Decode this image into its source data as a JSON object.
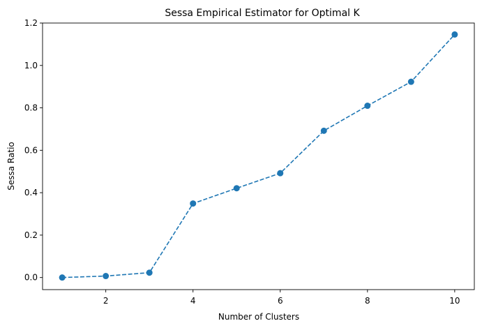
{
  "chart_data": {
    "type": "line",
    "title": "Sessa Empirical Estimator for Optimal K",
    "xlabel": "Number of Clusters",
    "ylabel": "Sessa Ratio",
    "x": [
      1,
      2,
      3,
      4,
      5,
      6,
      7,
      8,
      9,
      10
    ],
    "series": [
      {
        "values": [
          0.0,
          0.007,
          0.023,
          0.349,
          0.421,
          0.492,
          0.692,
          0.81,
          0.923,
          1.146
        ]
      }
    ],
    "xlim": [
      0.55,
      10.45
    ],
    "ylim": [
      -0.057,
      1.2
    ],
    "xticks": [
      2,
      4,
      6,
      8,
      10
    ],
    "xtick_labels": [
      "2",
      "4",
      "6",
      "8",
      "10"
    ],
    "yticks": [
      0.0,
      0.2,
      0.4,
      0.6,
      0.8,
      1.0,
      1.2
    ],
    "ytick_labels": [
      "0.0",
      "0.2",
      "0.4",
      "0.6",
      "0.8",
      "1.0",
      "1.2"
    ],
    "line_style": "dashed",
    "marker": "circle",
    "grid": false,
    "color": "#1f77b4"
  }
}
